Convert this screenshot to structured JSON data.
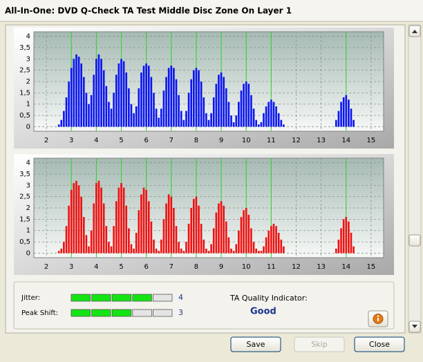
{
  "window_title": "All-In-One: DVD Q-Check TA Test Middle Disc Zone On Layer 1",
  "chart_data": [
    {
      "type": "bar",
      "color": "#0a14f0",
      "x": [
        2.5,
        2.6,
        2.7,
        2.8,
        2.9,
        3.0,
        3.1,
        3.2,
        3.3,
        3.4,
        3.5,
        3.6,
        3.7,
        3.8,
        3.9,
        4.0,
        4.1,
        4.2,
        4.3,
        4.4,
        4.5,
        4.6,
        4.7,
        4.8,
        4.9,
        5.0,
        5.1,
        5.2,
        5.3,
        5.4,
        5.5,
        5.6,
        5.7,
        5.8,
        5.9,
        6.0,
        6.1,
        6.2,
        6.3,
        6.4,
        6.5,
        6.6,
        6.7,
        6.8,
        6.9,
        7.0,
        7.1,
        7.2,
        7.3,
        7.4,
        7.5,
        7.6,
        7.7,
        7.8,
        7.9,
        8.0,
        8.1,
        8.2,
        8.3,
        8.4,
        8.5,
        8.6,
        8.7,
        8.8,
        8.9,
        9.0,
        9.1,
        9.2,
        9.3,
        9.4,
        9.5,
        9.6,
        9.7,
        9.8,
        9.9,
        10.0,
        10.1,
        10.2,
        10.3,
        10.4,
        10.5,
        10.6,
        10.7,
        10.8,
        10.9,
        11.0,
        11.1,
        11.2,
        11.3,
        11.4,
        11.5,
        13.6,
        13.7,
        13.8,
        13.9,
        14.0,
        14.1,
        14.2,
        14.3
      ],
      "values": [
        0.1,
        0.3,
        0.7,
        1.3,
        2.0,
        2.6,
        3.0,
        3.2,
        3.1,
        2.8,
        2.2,
        1.5,
        1.0,
        1.4,
        2.3,
        3.0,
        3.2,
        3.0,
        2.5,
        1.8,
        1.1,
        0.8,
        1.5,
        2.3,
        2.8,
        3.0,
        2.9,
        2.4,
        1.7,
        1.0,
        0.6,
        0.9,
        1.7,
        2.4,
        2.7,
        2.8,
        2.7,
        2.2,
        1.5,
        0.8,
        0.4,
        0.8,
        1.6,
        2.2,
        2.6,
        2.7,
        2.6,
        2.1,
        1.4,
        0.7,
        0.3,
        0.7,
        1.5,
        2.1,
        2.5,
        2.6,
        2.5,
        2.0,
        1.3,
        0.6,
        0.3,
        0.6,
        1.3,
        1.9,
        2.3,
        2.4,
        2.2,
        1.7,
        1.1,
        0.5,
        0.2,
        0.5,
        1.1,
        1.6,
        1.9,
        2.0,
        1.9,
        1.4,
        0.8,
        0.3,
        0.1,
        0.2,
        0.6,
        0.9,
        1.1,
        1.2,
        1.1,
        0.9,
        0.6,
        0.3,
        0.1,
        0.3,
        0.7,
        1.1,
        1.3,
        1.4,
        1.2,
        0.8,
        0.3
      ],
      "xlim": [
        1.5,
        15.5
      ],
      "ylim": [
        -0.2,
        4.2
      ],
      "xticks": [
        2,
        3,
        4,
        5,
        6,
        7,
        8,
        9,
        10,
        11,
        12,
        13,
        14,
        15
      ],
      "yticks": [
        0,
        {
          "value": 0.5,
          "label": "0,5"
        },
        1,
        {
          "value": 1.5,
          "label": "1,5"
        },
        2,
        {
          "value": 2.5,
          "label": "2,5"
        },
        3,
        {
          "value": 3.5,
          "label": "3,5"
        },
        4
      ],
      "grid": true,
      "reference_lines": [
        3,
        4,
        5,
        6,
        7,
        8,
        9,
        10,
        11,
        14
      ],
      "reference_color": "#2ad62a"
    },
    {
      "type": "bar",
      "color": "#ee1010",
      "x": [
        2.5,
        2.6,
        2.7,
        2.8,
        2.9,
        3.0,
        3.1,
        3.2,
        3.3,
        3.4,
        3.5,
        3.6,
        3.7,
        3.8,
        3.9,
        4.0,
        4.1,
        4.2,
        4.3,
        4.4,
        4.5,
        4.6,
        4.7,
        4.8,
        4.9,
        5.0,
        5.1,
        5.2,
        5.3,
        5.4,
        5.5,
        5.6,
        5.7,
        5.8,
        5.9,
        6.0,
        6.1,
        6.2,
        6.3,
        6.4,
        6.5,
        6.6,
        6.7,
        6.8,
        6.9,
        7.0,
        7.1,
        7.2,
        7.3,
        7.4,
        7.5,
        7.6,
        7.7,
        7.8,
        7.9,
        8.0,
        8.1,
        8.2,
        8.3,
        8.4,
        8.5,
        8.6,
        8.7,
        8.8,
        8.9,
        9.0,
        9.1,
        9.2,
        9.3,
        9.4,
        9.5,
        9.6,
        9.7,
        9.8,
        9.9,
        10.0,
        10.1,
        10.2,
        10.3,
        10.4,
        10.5,
        10.6,
        10.7,
        10.8,
        10.9,
        11.0,
        11.1,
        11.2,
        11.3,
        11.4,
        11.5,
        13.6,
        13.7,
        13.8,
        13.9,
        14.0,
        14.1,
        14.2,
        14.3
      ],
      "values": [
        0.1,
        0.2,
        0.5,
        1.2,
        2.1,
        2.8,
        3.1,
        3.2,
        3.0,
        2.5,
        1.6,
        0.8,
        0.3,
        1.0,
        2.2,
        3.1,
        3.2,
        2.9,
        2.2,
        1.2,
        0.5,
        0.3,
        1.2,
        2.3,
        2.9,
        3.1,
        2.9,
        2.1,
        1.1,
        0.4,
        0.2,
        0.9,
        1.9,
        2.6,
        2.9,
        2.8,
        2.3,
        1.4,
        0.6,
        0.2,
        0.1,
        0.6,
        1.5,
        2.2,
        2.6,
        2.5,
        2.0,
        1.2,
        0.5,
        0.2,
        0.1,
        0.5,
        1.3,
        2.0,
        2.4,
        2.5,
        2.1,
        1.3,
        0.6,
        0.2,
        0.1,
        0.4,
        1.1,
        1.8,
        2.2,
        2.3,
        2.1,
        1.4,
        0.7,
        0.2,
        0.1,
        0.4,
        1.0,
        1.6,
        1.9,
        2.0,
        1.7,
        1.1,
        0.5,
        0.2,
        0.1,
        0.1,
        0.3,
        0.7,
        1.0,
        1.2,
        1.3,
        1.2,
        0.9,
        0.6,
        0.3,
        0.2,
        0.6,
        1.1,
        1.5,
        1.6,
        1.4,
        0.9,
        0.3
      ],
      "xlim": [
        1.5,
        15.5
      ],
      "ylim": [
        -0.2,
        4.2
      ],
      "xticks": [
        2,
        3,
        4,
        5,
        6,
        7,
        8,
        9,
        10,
        11,
        12,
        13,
        14,
        15
      ],
      "yticks": [
        0,
        {
          "value": 0.5,
          "label": "0,5"
        },
        1,
        {
          "value": 1.5,
          "label": "1,5"
        },
        2,
        {
          "value": 2.5,
          "label": "2,5"
        },
        3,
        {
          "value": 3.5,
          "label": "3,5"
        },
        4
      ],
      "grid": true,
      "reference_lines": [
        3,
        4,
        5,
        6,
        7,
        8,
        9,
        10,
        11,
        14
      ],
      "reference_color": "#2ad62a"
    }
  ],
  "indicators": [
    {
      "label": "Jitter:",
      "value": 4,
      "max": 5
    },
    {
      "label": "Peak Shift:",
      "value": 3,
      "max": 5
    }
  ],
  "quality": {
    "label": "TA Quality Indicator:",
    "value": "Good"
  },
  "buttons": [
    "Save",
    "Skip",
    "Close"
  ]
}
